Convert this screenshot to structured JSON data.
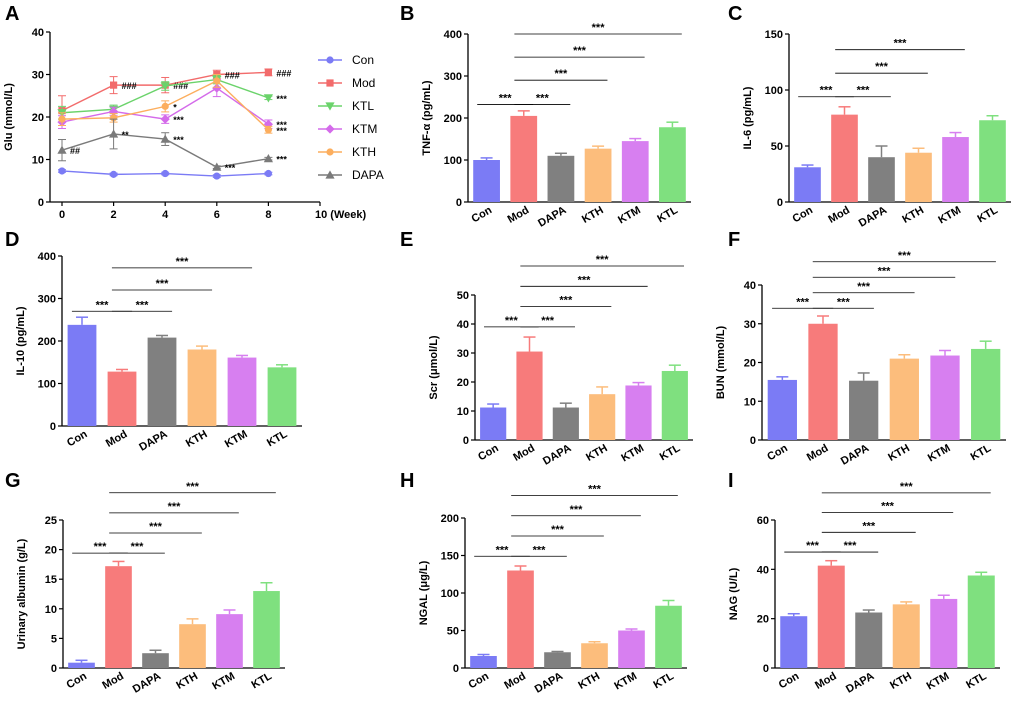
{
  "colors": {
    "Con": "#7b7bf5",
    "Mod": "#f77b7b",
    "KTL": "#7fe07f",
    "KTM": "#d77ff0",
    "KTH": "#fcbd7c",
    "DAPA": "#808080",
    "line_Con": "#7b7bf5",
    "line_Mod": "#f26b6b",
    "line_KTL": "#6bd36b",
    "line_KTM": "#d46bea",
    "line_KTH": "#fcae5e",
    "line_DAPA": "#7a7a7a",
    "axis": "#000000"
  },
  "chart_data": [
    {
      "id": "A",
      "type": "line",
      "panel_label": "A",
      "ylabel": "Glu (mmol/L)",
      "xlabel": "10 (Week)",
      "ylim": [
        0,
        40
      ],
      "yticks": [
        0,
        10,
        20,
        30,
        40
      ],
      "xlim": [
        0,
        10
      ],
      "xticks": [
        0,
        2,
        4,
        6,
        8
      ],
      "x": [
        0,
        2,
        4,
        6,
        8
      ],
      "series": [
        {
          "name": "Con",
          "marker": "circle",
          "values": [
            7.3,
            6.5,
            6.7,
            6.1,
            6.7
          ],
          "err": [
            0.3,
            0.3,
            0.3,
            0.3,
            0.3
          ],
          "annotations": [
            "",
            "",
            "",
            "",
            ""
          ]
        },
        {
          "name": "Mod",
          "marker": "square",
          "values": [
            21.5,
            27.5,
            27.5,
            30.0,
            30.5
          ],
          "err": [
            3.5,
            2.0,
            1.8,
            1.0,
            0.8
          ],
          "annotations": [
            "",
            "###",
            "###",
            "###",
            "###"
          ]
        },
        {
          "name": "KTL",
          "marker": "triangle-down",
          "values": [
            21.0,
            21.8,
            27.3,
            28.8,
            24.5
          ],
          "err": [
            1.5,
            1.0,
            1.0,
            1.0,
            0.4
          ],
          "annotations": [
            "",
            "",
            "",
            "",
            "***"
          ]
        },
        {
          "name": "KTM",
          "marker": "diamond",
          "values": [
            18.8,
            21.3,
            19.5,
            26.8,
            18.3
          ],
          "err": [
            1.5,
            1.0,
            1.0,
            2.0,
            1.0
          ],
          "annotations": [
            "",
            "",
            "***",
            "",
            "***"
          ]
        },
        {
          "name": "KTH",
          "marker": "circle",
          "values": [
            19.5,
            19.8,
            22.5,
            28.5,
            17.0
          ],
          "err": [
            1.5,
            1.0,
            1.3,
            1.5,
            0.8
          ],
          "annotations": [
            "",
            "",
            "*",
            "",
            "***"
          ]
        },
        {
          "name": "DAPA",
          "marker": "triangle-up",
          "values": [
            12.2,
            16.0,
            14.8,
            8.2,
            10.2
          ],
          "err": [
            2.5,
            3.5,
            1.5,
            0.3,
            0.3
          ],
          "annotations": [
            "##",
            "**",
            "***",
            "***",
            "***"
          ]
        }
      ]
    },
    {
      "id": "B",
      "type": "bar",
      "panel_label": "B",
      "ylabel": "TNF-α (pg/mL)",
      "ylim": [
        0,
        400
      ],
      "yticks": [
        0,
        100,
        200,
        300,
        400
      ],
      "categories": [
        "Con",
        "Mod",
        "DAPA",
        "KTH",
        "KTM",
        "KTL"
      ],
      "values": [
        100,
        205,
        110,
        127,
        145,
        178
      ],
      "err": [
        5,
        12,
        6,
        6,
        6,
        12
      ],
      "significance": [
        {
          "from": 0,
          "to": 1,
          "label": "***",
          "y": 232
        },
        {
          "from": 1,
          "to": 2,
          "label": "***",
          "y": 232
        },
        {
          "from": 1,
          "to": 3,
          "label": "***",
          "y": 290
        },
        {
          "from": 1,
          "to": 4,
          "label": "***",
          "y": 345
        },
        {
          "from": 1,
          "to": 5,
          "label": "***",
          "y": 400
        }
      ]
    },
    {
      "id": "C",
      "type": "bar",
      "panel_label": "C",
      "ylabel": "IL-6 (pg/mL)",
      "ylim": [
        0,
        150
      ],
      "yticks": [
        0,
        50,
        100,
        150
      ],
      "categories": [
        "Con",
        "Mod",
        "DAPA",
        "KTH",
        "KTM",
        "KTL"
      ],
      "values": [
        31,
        78,
        40,
        44,
        58,
        73
      ],
      "err": [
        2,
        7,
        10,
        4,
        4,
        4
      ],
      "significance": [
        {
          "from": 0,
          "to": 1,
          "label": "***",
          "y": 94
        },
        {
          "from": 1,
          "to": 2,
          "label": "***",
          "y": 94
        },
        {
          "from": 1,
          "to": 3,
          "label": "***",
          "y": 115
        },
        {
          "from": 1,
          "to": 4,
          "label": "***",
          "y": 136
        }
      ]
    },
    {
      "id": "D",
      "type": "bar",
      "panel_label": "D",
      "ylabel": "IL-10 (pg/mL)",
      "ylim": [
        0,
        400
      ],
      "yticks": [
        0,
        100,
        200,
        300,
        400
      ],
      "categories": [
        "Con",
        "Mod",
        "DAPA",
        "KTH",
        "KTM",
        "KTL"
      ],
      "values": [
        238,
        128,
        208,
        180,
        161,
        138
      ],
      "err": [
        18,
        5,
        5,
        8,
        5,
        6
      ],
      "significance": [
        {
          "from": 0,
          "to": 1,
          "label": "***",
          "y": 270
        },
        {
          "from": 1,
          "to": 2,
          "label": "***",
          "y": 270
        },
        {
          "from": 1,
          "to": 3,
          "label": "***",
          "y": 320
        },
        {
          "from": 1,
          "to": 4,
          "label": "***",
          "y": 372
        }
      ]
    },
    {
      "id": "E",
      "type": "bar",
      "panel_label": "E",
      "ylabel": "Scr (μmol/L)",
      "ylim": [
        0,
        50
      ],
      "yticks": [
        0,
        10,
        20,
        30,
        40,
        50
      ],
      "categories": [
        "Con",
        "Mod",
        "DAPA",
        "KTH",
        "KTM",
        "KTL"
      ],
      "values": [
        11.2,
        30.5,
        11.2,
        15.8,
        18.8,
        23.8
      ],
      "err": [
        1.2,
        5,
        1.5,
        2.5,
        1,
        2
      ],
      "significance": [
        {
          "from": 0,
          "to": 1,
          "label": "***",
          "y": 39
        },
        {
          "from": 1,
          "to": 2,
          "label": "***",
          "y": 39
        },
        {
          "from": 1,
          "to": 3,
          "label": "***",
          "y": 46
        },
        {
          "from": 1,
          "to": 4,
          "label": "***",
          "y": 53
        },
        {
          "from": 1,
          "to": 5,
          "label": "***",
          "y": 60
        }
      ]
    },
    {
      "id": "F",
      "type": "bar",
      "panel_label": "F",
      "ylabel": "BUN (mmol/L)",
      "ylim": [
        0,
        40
      ],
      "yticks": [
        0,
        10,
        20,
        30,
        40
      ],
      "categories": [
        "Con",
        "Mod",
        "DAPA",
        "KTH",
        "KTM",
        "KTL"
      ],
      "values": [
        15.5,
        30,
        15.3,
        21,
        21.8,
        23.5
      ],
      "err": [
        0.8,
        2,
        2,
        1,
        1.3,
        2
      ],
      "significance": [
        {
          "from": 0,
          "to": 1,
          "label": "***",
          "y": 34
        },
        {
          "from": 1,
          "to": 2,
          "label": "***",
          "y": 34
        },
        {
          "from": 1,
          "to": 3,
          "label": "***",
          "y": 38
        },
        {
          "from": 1,
          "to": 4,
          "label": "***",
          "y": 42
        },
        {
          "from": 1,
          "to": 5,
          "label": "***",
          "y": 46
        }
      ]
    },
    {
      "id": "G",
      "type": "bar",
      "panel_label": "G",
      "ylabel": "Urinary albumin (g/L)",
      "ylim": [
        0,
        25
      ],
      "yticks": [
        0,
        5,
        10,
        15,
        20,
        25
      ],
      "categories": [
        "Con",
        "Mod",
        "DAPA",
        "KTH",
        "KTM",
        "KTL"
      ],
      "values": [
        0.9,
        17.2,
        2.5,
        7.4,
        9.1,
        13
      ],
      "err": [
        0.4,
        0.8,
        0.5,
        0.9,
        0.7,
        1.4
      ],
      "significance": [
        {
          "from": 0,
          "to": 1,
          "label": "***",
          "y": 19.4
        },
        {
          "from": 1,
          "to": 2,
          "label": "***",
          "y": 19.4
        },
        {
          "from": 1,
          "to": 3,
          "label": "***",
          "y": 22.8
        },
        {
          "from": 1,
          "to": 4,
          "label": "***",
          "y": 26.2
        },
        {
          "from": 1,
          "to": 5,
          "label": "***",
          "y": 29.6
        }
      ]
    },
    {
      "id": "H",
      "type": "bar",
      "panel_label": "H",
      "ylabel": "NGAL (μg/L)",
      "ylim": [
        0,
        200
      ],
      "yticks": [
        0,
        50,
        100,
        150,
        200
      ],
      "categories": [
        "Con",
        "Mod",
        "DAPA",
        "KTH",
        "KTM",
        "KTL"
      ],
      "values": [
        16,
        130,
        21,
        33,
        50,
        83
      ],
      "err": [
        2,
        6,
        1,
        2,
        2,
        7
      ],
      "significance": [
        {
          "from": 0,
          "to": 1,
          "label": "***",
          "y": 149
        },
        {
          "from": 1,
          "to": 2,
          "label": "***",
          "y": 149
        },
        {
          "from": 1,
          "to": 3,
          "label": "***",
          "y": 176
        },
        {
          "from": 1,
          "to": 4,
          "label": "***",
          "y": 203
        },
        {
          "from": 1,
          "to": 5,
          "label": "***",
          "y": 230
        }
      ]
    },
    {
      "id": "I",
      "type": "bar",
      "panel_label": "I",
      "ylabel": "NAG (U/L)",
      "ylim": [
        0,
        60
      ],
      "yticks": [
        0,
        20,
        40,
        60
      ],
      "categories": [
        "Con",
        "Mod",
        "DAPA",
        "KTH",
        "KTM",
        "KTL"
      ],
      "values": [
        21,
        41.5,
        22.5,
        25.8,
        28,
        37.5
      ],
      "err": [
        1,
        2,
        1,
        1,
        1.5,
        1.3
      ],
      "significance": [
        {
          "from": 0,
          "to": 1,
          "label": "***",
          "y": 47
        },
        {
          "from": 1,
          "to": 2,
          "label": "***",
          "y": 47
        },
        {
          "from": 1,
          "to": 3,
          "label": "***",
          "y": 55
        },
        {
          "from": 1,
          "to": 4,
          "label": "***",
          "y": 63
        },
        {
          "from": 1,
          "to": 5,
          "label": "***",
          "y": 71
        }
      ]
    }
  ]
}
